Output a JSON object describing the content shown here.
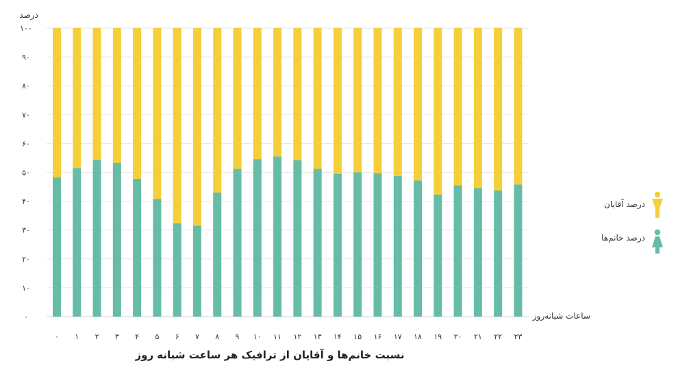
{
  "chart_data": {
    "type": "bar",
    "stacked": true,
    "title": "نسبت خانم‌ها و آقایان از ترافیک هر ساعت شبانه روز",
    "xlabel": "ساعات شبانه‌روز",
    "ylabel": "درصد",
    "ylim": [
      0,
      100
    ],
    "yticks": [
      "۰",
      "۱۰",
      "۲۰",
      "۳۰",
      "۴۰",
      "۵۰",
      "۶۰",
      "۷۰",
      "۸۰",
      "۹۰",
      "۱۰۰"
    ],
    "categories": [
      "۰",
      "۱",
      "۲",
      "۳",
      "۴",
      "۵",
      "۶",
      "۷",
      "۸",
      "۹",
      "۱۰",
      "۱۱",
      "۱۲",
      "۱۳",
      "۱۴",
      "۱۵",
      "۱۶",
      "۱۷",
      "۱۸",
      "۱۹",
      "۲۰",
      "۲۱",
      "۲۲",
      "۲۳"
    ],
    "grid": true,
    "legend_position": "right",
    "series": [
      {
        "name": "درصد خانم‌ها",
        "color": "#66BCA6",
        "icon": "woman-icon",
        "values": [
          48.3,
          51.5,
          54.3,
          53.3,
          47.8,
          40.8,
          32.3,
          31.5,
          43.0,
          51.2,
          54.6,
          55.5,
          54.2,
          51.2,
          49.5,
          50.0,
          49.7,
          48.7,
          47.2,
          42.3,
          45.5,
          44.6,
          43.7,
          45.8
        ]
      },
      {
        "name": "درصد آقایان",
        "color": "#F5CF3A",
        "icon": "man-icon",
        "values": [
          51.7,
          48.5,
          45.7,
          46.7,
          52.2,
          59.2,
          67.7,
          68.5,
          57.0,
          48.8,
          45.4,
          44.5,
          45.8,
          48.8,
          50.5,
          50.0,
          50.3,
          51.3,
          52.8,
          57.7,
          54.5,
          55.4,
          56.3,
          54.2
        ]
      }
    ]
  }
}
